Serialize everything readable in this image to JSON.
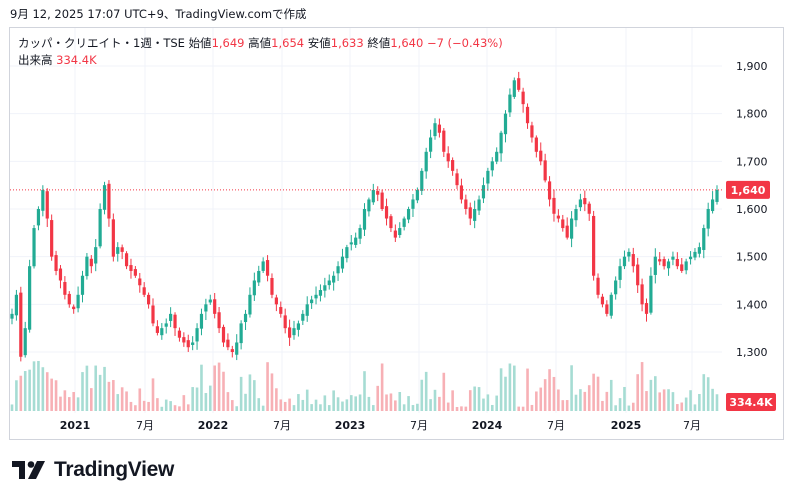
{
  "header": {
    "timestamp": "9月 12, 2025 17:07 UTC+9、TradingView.comで作成"
  },
  "legend": {
    "symbol": "カッパ・クリエイト・1週・TSE",
    "open_label": "始値",
    "open": "1,649",
    "high_label": "高値",
    "high": "1,654",
    "low_label": "安値",
    "low": "1,633",
    "close_label": "終値",
    "close": "1,640",
    "change": "−7 (−0.43%)",
    "volume_label": "出来高",
    "volume": "334.4K"
  },
  "footer": {
    "brand": "TradingView"
  },
  "colors": {
    "up": "#22ab94",
    "down": "#f23645",
    "up_volume": "#a6dcd3",
    "down_volume": "#f7b0b5",
    "grid": "#f0f3fa",
    "axis_text": "#131722"
  },
  "chart_data": {
    "type": "candlestick",
    "interval": "1週",
    "ylim": [
      1245,
      1935
    ],
    "y_ticks": [
      "1,300",
      "1,400",
      "1,500",
      "1,600",
      "1,700",
      "1,800",
      "1,900"
    ],
    "x_ticks": [
      "2021",
      "7月",
      "2022",
      "7月",
      "2023",
      "7月",
      "2024",
      "7月",
      "2025",
      "7月"
    ],
    "last_price": 1640,
    "last_price_label": "1,640",
    "last_volume_label": "334.4K",
    "closes": [
      1380,
      1420,
      1290,
      1350,
      1480,
      1560,
      1600,
      1640,
      1580,
      1500,
      1470,
      1450,
      1420,
      1400,
      1390,
      1420,
      1460,
      1500,
      1480,
      1520,
      1600,
      1650,
      1580,
      1500,
      1520,
      1510,
      1480,
      1470,
      1460,
      1440,
      1420,
      1400,
      1360,
      1340,
      1350,
      1360,
      1380,
      1350,
      1330,
      1320,
      1310,
      1320,
      1350,
      1380,
      1400,
      1410,
      1380,
      1350,
      1320,
      1310,
      1300,
      1320,
      1360,
      1380,
      1420,
      1450,
      1470,
      1490,
      1460,
      1420,
      1400,
      1380,
      1350,
      1330,
      1350,
      1360,
      1380,
      1400,
      1410,
      1420,
      1430,
      1440,
      1450,
      1460,
      1480,
      1500,
      1520,
      1530,
      1540,
      1560,
      1600,
      1620,
      1640,
      1630,
      1600,
      1580,
      1560,
      1540,
      1560,
      1580,
      1600,
      1620,
      1640,
      1680,
      1720,
      1750,
      1780,
      1760,
      1720,
      1700,
      1680,
      1650,
      1620,
      1600,
      1580,
      1600,
      1620,
      1650,
      1680,
      1700,
      1720,
      1760,
      1800,
      1840,
      1870,
      1850,
      1820,
      1780,
      1750,
      1720,
      1700,
      1660,
      1620,
      1590,
      1580,
      1560,
      1540,
      1580,
      1600,
      1620,
      1610,
      1590,
      1460,
      1420,
      1400,
      1380,
      1420,
      1450,
      1480,
      1500,
      1510,
      1480,
      1440,
      1400,
      1380,
      1460,
      1500,
      1490,
      1480,
      1490,
      1500,
      1480,
      1470,
      1490,
      1500,
      1510,
      1520,
      1560,
      1600,
      1620,
      1640
    ]
  }
}
